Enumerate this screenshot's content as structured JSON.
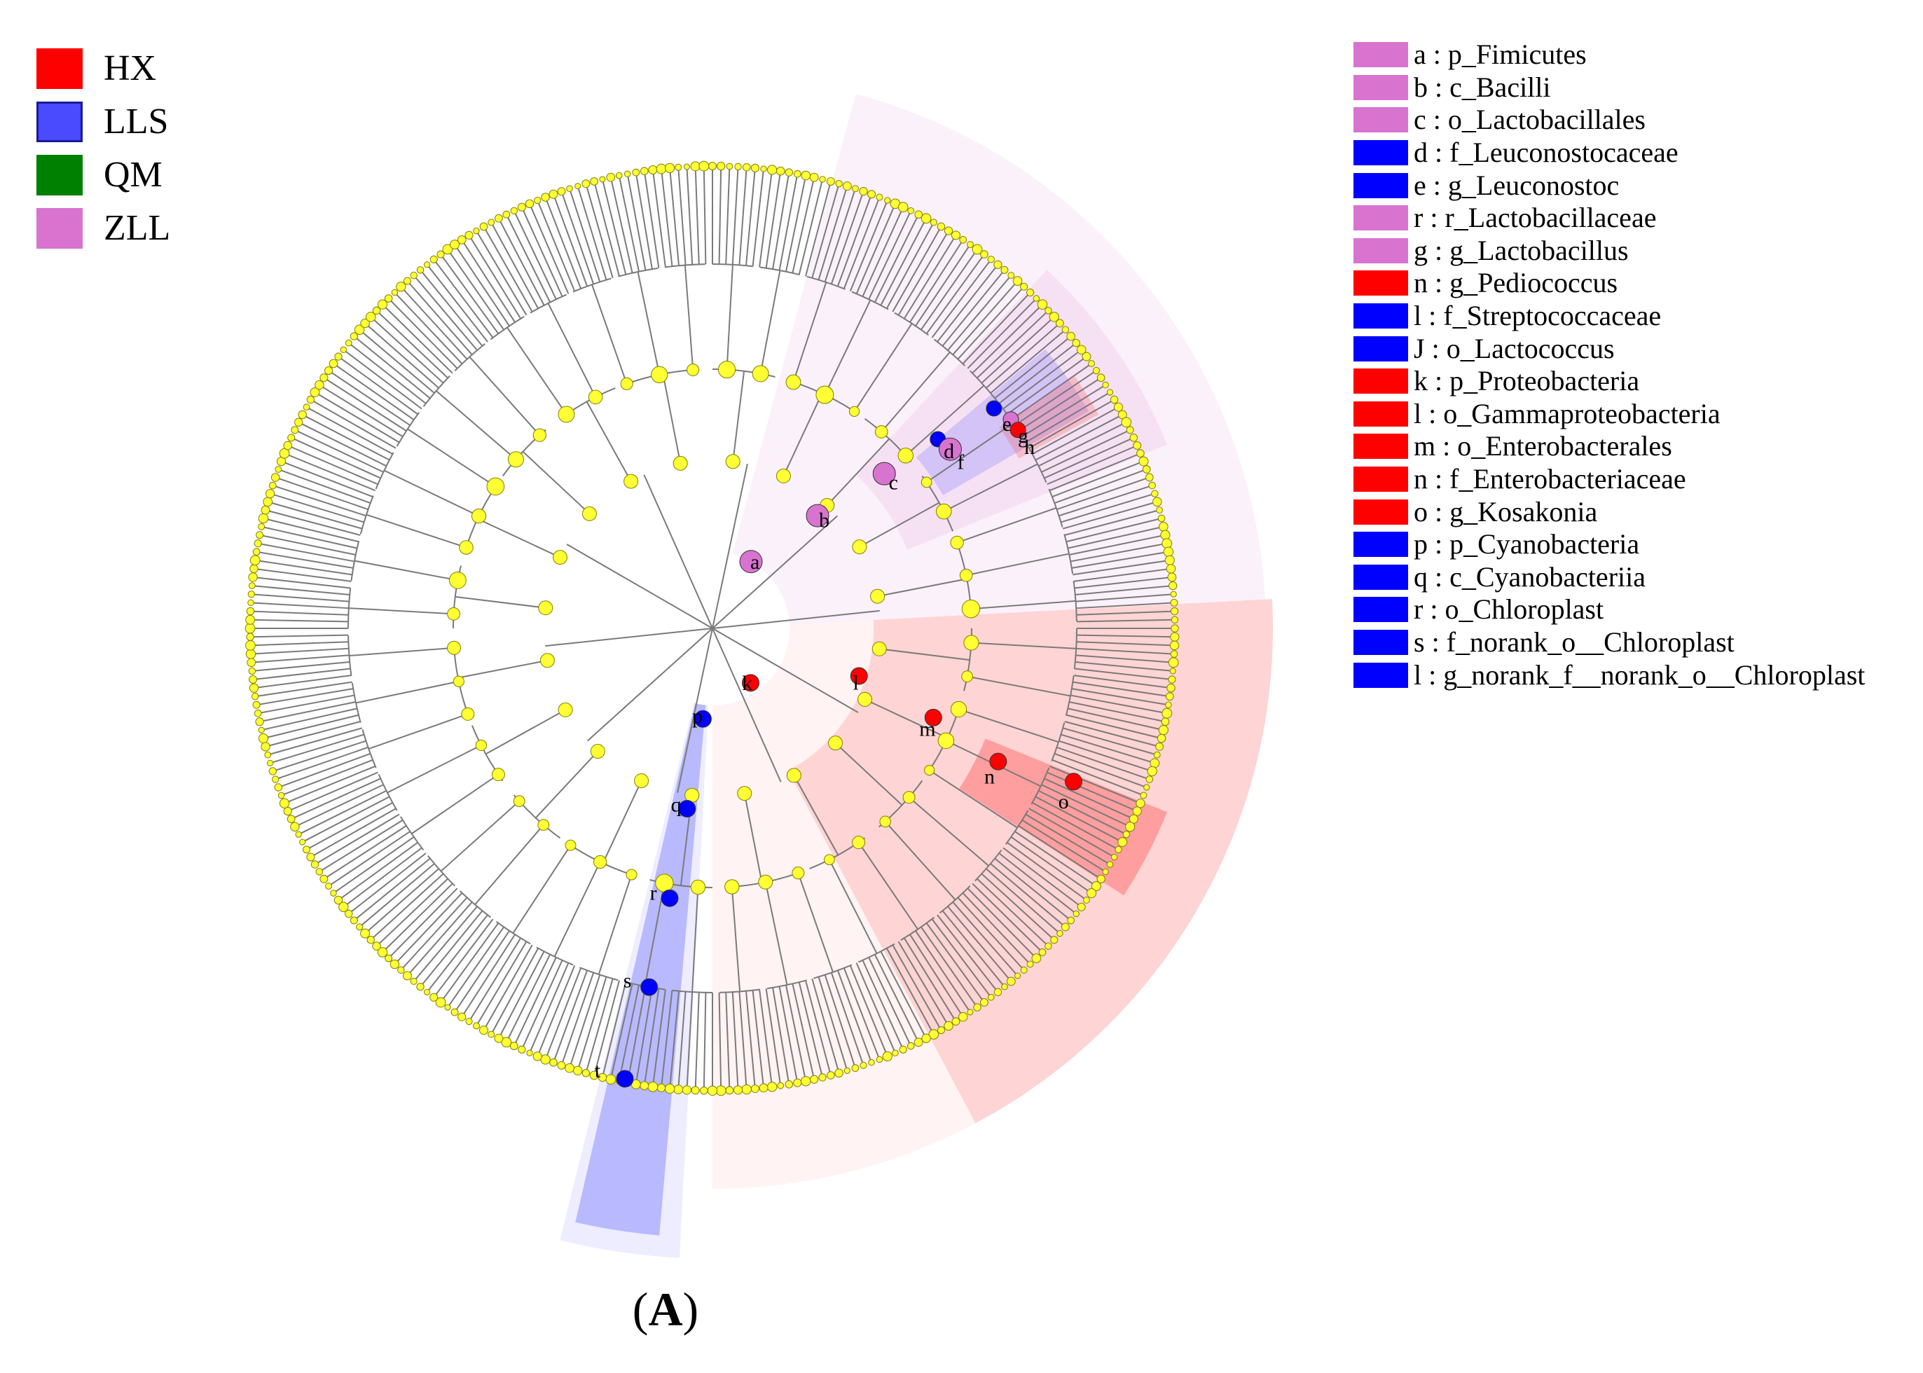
{
  "colors": {
    "HX": "#ff0000",
    "LLS": "#0000ff",
    "QM": "#008000",
    "ZLL": "#d873d0",
    "node": "#ffff33",
    "line": "#808080"
  },
  "group_legend": [
    {
      "label": "HX",
      "color": "#ff0000"
    },
    {
      "label": "LLS",
      "color": "#4a4aff"
    },
    {
      "label": "QM",
      "color": "#008000"
    },
    {
      "label": "ZLL",
      "color": "#d873d0"
    }
  ],
  "taxa_legend": [
    {
      "letter": "a",
      "taxon": "p_Fimicutes",
      "group": "ZLL"
    },
    {
      "letter": "b",
      "taxon": "c_Bacilli",
      "group": "ZLL"
    },
    {
      "letter": "c",
      "taxon": "o_Lactobacillales",
      "group": "ZLL"
    },
    {
      "letter": "d",
      "taxon": "f_Leuconostocaceae",
      "group": "LLS"
    },
    {
      "letter": "e",
      "taxon": "g_Leuconostoc",
      "group": "LLS"
    },
    {
      "letter": "r",
      "taxon": "r_Lactobacillaceae",
      "group": "ZLL"
    },
    {
      "letter": "g",
      "taxon": "g_Lactobacillus",
      "group": "ZLL"
    },
    {
      "letter": "n",
      "taxon": "g_Pediococcus",
      "group": "HX"
    },
    {
      "letter": "l",
      "taxon": "f_Streptococcaceae",
      "group": "LLS"
    },
    {
      "letter": "J",
      "taxon": "o_Lactococcus",
      "group": "LLS"
    },
    {
      "letter": "k",
      "taxon": "p_Proteobacteria",
      "group": "HX"
    },
    {
      "letter": "l",
      "taxon": "o_Gammaproteobacteria",
      "group": "HX"
    },
    {
      "letter": "m",
      "taxon": "o_Enterobacterales",
      "group": "HX"
    },
    {
      "letter": "n",
      "taxon": "f_Enterobacteriaceae",
      "group": "HX"
    },
    {
      "letter": "o",
      "taxon": "g_Kosakonia",
      "group": "HX"
    },
    {
      "letter": "p",
      "taxon": "p_Cyanobacteria",
      "group": "LLS"
    },
    {
      "letter": "q",
      "taxon": "c_Cyanobacteriia",
      "group": "LLS"
    },
    {
      "letter": "r",
      "taxon": "o_Chloroplast",
      "group": "LLS"
    },
    {
      "letter": "s",
      "taxon": "f_norank_o__Chloroplast",
      "group": "LLS"
    },
    {
      "letter": "l",
      "taxon": "g_norank_f__norank_o__Chloroplast",
      "group": "LLS"
    }
  ],
  "tree_labels": [
    "a",
    "b",
    "c",
    "d",
    "e",
    "f",
    "g",
    "h",
    "k",
    "l",
    "m",
    "n",
    "o",
    "p",
    "q",
    "r",
    "s",
    "t"
  ],
  "caption": {
    "open": "(",
    "letter": "A",
    "close": ")"
  }
}
